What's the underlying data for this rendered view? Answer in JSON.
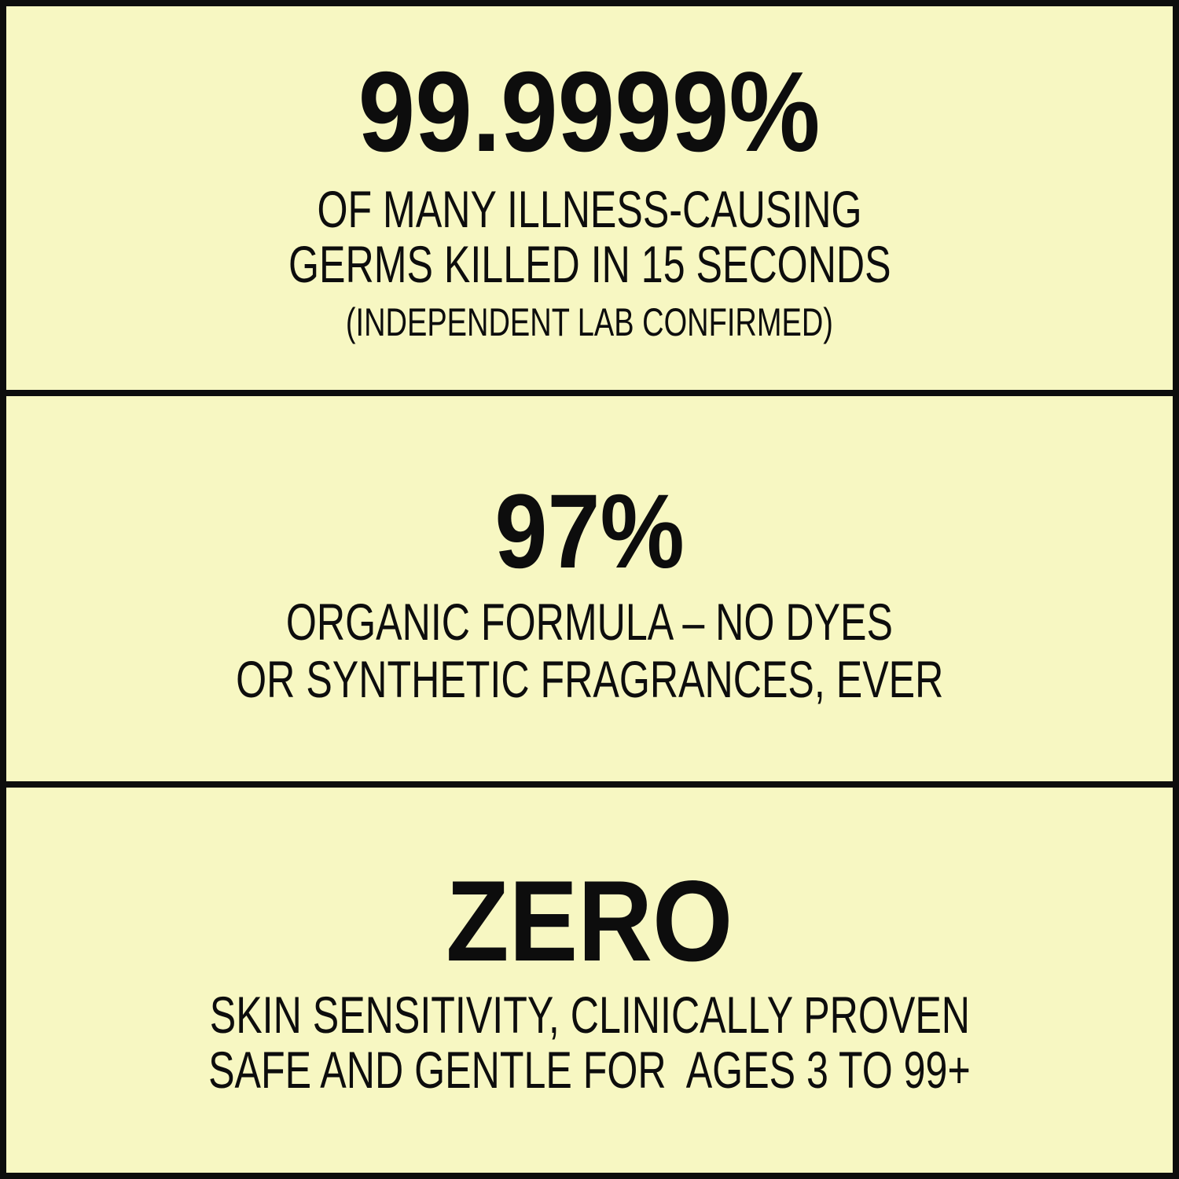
{
  "colors": {
    "background": "#f7f7c2",
    "ink": "#0d0d0d"
  },
  "sections": [
    {
      "headline": "99.9999%",
      "lines": [
        "OF MANY ILLNESS-CAUSING",
        "GERMS KILLED IN 15 SECONDS"
      ],
      "note": "(INDEPENDENT LAB CONFIRMED)"
    },
    {
      "headline": "97%",
      "lines": [
        "ORGANIC FORMULA – NO DYES",
        "OR SYNTHETIC FRAGRANCES, EVER"
      ]
    },
    {
      "headline": "ZERO",
      "lines": [
        "SKIN SENSITIVITY, CLINICALLY PROVEN",
        "SAFE AND GENTLE FOR  AGES 3 TO 99+"
      ]
    }
  ]
}
